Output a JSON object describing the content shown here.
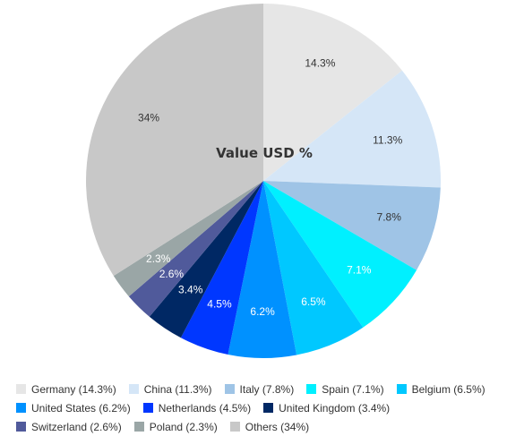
{
  "chart_data": {
    "type": "pie",
    "title": "Value USD %",
    "slices": [
      {
        "name": "Germany",
        "value": 14.3,
        "label": "14.3%",
        "legend": "Germany (14.3%)",
        "color": "#e6e6e6",
        "label_color": "#333333"
      },
      {
        "name": "China",
        "value": 11.3,
        "label": "11.3%",
        "legend": "China (11.3%)",
        "color": "#d5e6f7",
        "label_color": "#333333"
      },
      {
        "name": "Italy",
        "value": 7.8,
        "label": "7.8%",
        "legend": "Italy (7.8%)",
        "color": "#9fc4e6",
        "label_color": "#333333"
      },
      {
        "name": "Spain",
        "value": 7.1,
        "label": "7.1%",
        "legend": "Spain (7.1%)",
        "color": "#00f0ff",
        "label_color": "#ffffff"
      },
      {
        "name": "Belgium",
        "value": 6.5,
        "label": "6.5%",
        "legend": "Belgium (6.5%)",
        "color": "#00c8ff",
        "label_color": "#ffffff"
      },
      {
        "name": "United States",
        "value": 6.2,
        "label": "6.2%",
        "legend": "United States (6.2%)",
        "color": "#0091ff",
        "label_color": "#ffffff"
      },
      {
        "name": "Netherlands",
        "value": 4.5,
        "label": "4.5%",
        "legend": "Netherlands (4.5%)",
        "color": "#0037ff",
        "label_color": "#ffffff"
      },
      {
        "name": "United Kingdom",
        "value": 3.4,
        "label": "3.4%",
        "legend": "United Kingdom (3.4%)",
        "color": "#002864",
        "label_color": "#ffffff"
      },
      {
        "name": "Switzerland",
        "value": 2.6,
        "label": "2.6%",
        "legend": "Switzerland (2.6%)",
        "color": "#505a9b",
        "label_color": "#ffffff"
      },
      {
        "name": "Poland",
        "value": 2.3,
        "label": "2.3%",
        "legend": "Poland (2.3%)",
        "color": "#9aa6a6",
        "label_color": "#ffffff"
      },
      {
        "name": "Others",
        "value": 34,
        "label": "34%",
        "legend": "Others (34%)",
        "color": "#c8c8c8",
        "label_color": "#333333"
      }
    ],
    "legend_placement": "bottom",
    "start_angle": "12 o'clock",
    "direction": "clockwise"
  }
}
